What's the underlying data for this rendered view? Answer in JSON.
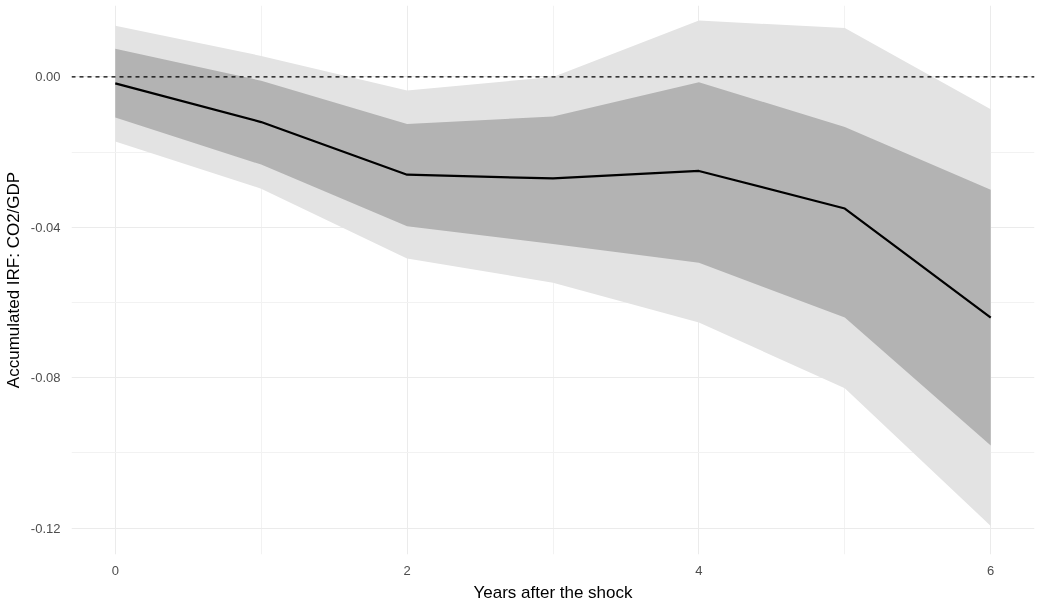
{
  "chart_data": {
    "type": "line",
    "xlabel": "Years after the shock",
    "ylabel": "Accumulated IRF: CO2/GDP",
    "x": [
      0,
      1,
      2,
      3,
      4,
      5,
      6
    ],
    "series": [
      {
        "type": "area",
        "color": "#e3e3e3",
        "values": [
          null,
          null,
          null,
          null,
          null,
          null,
          null
        ],
        "lower": [
          -0.0172,
          -0.0297,
          -0.0483,
          -0.0547,
          -0.0653,
          -0.0828,
          -0.1194
        ],
        "upper": [
          0.0136,
          0.0056,
          -0.0036,
          0.0,
          0.015,
          0.013,
          -0.0086
        ]
      },
      {
        "type": "area",
        "color": "#b3b3b3",
        "values": [
          null,
          null,
          null,
          null,
          null,
          null,
          null
        ],
        "lower": [
          -0.0108,
          -0.0233,
          -0.0397,
          -0.0444,
          -0.0494,
          -0.064,
          -0.098
        ],
        "upper": [
          0.0075,
          -0.001,
          -0.0125,
          -0.0105,
          -0.0014,
          -0.0133,
          -0.03
        ]
      },
      {
        "type": "line",
        "color": "#000000",
        "values": [
          -0.0017,
          -0.012,
          -0.026,
          -0.027,
          -0.025,
          -0.035,
          -0.064
        ]
      }
    ],
    "xlim": [
      -0.3,
      6.3
    ],
    "ylim": [
      -0.127,
      0.019
    ],
    "xticks": [
      0,
      2,
      4,
      6
    ],
    "yticks": [
      {
        "value": 0,
        "label": "0.00"
      },
      {
        "value": -0.04,
        "label": "-0.04"
      },
      {
        "value": -0.08,
        "label": "-0.08"
      },
      {
        "value": -0.12,
        "label": "-0.12"
      }
    ],
    "ref_lines": [
      {
        "axis": "y",
        "value": 0,
        "color": "#000000",
        "line_style": "dashed"
      }
    ],
    "grid": true,
    "marker": "none",
    "line_style": "solid"
  }
}
